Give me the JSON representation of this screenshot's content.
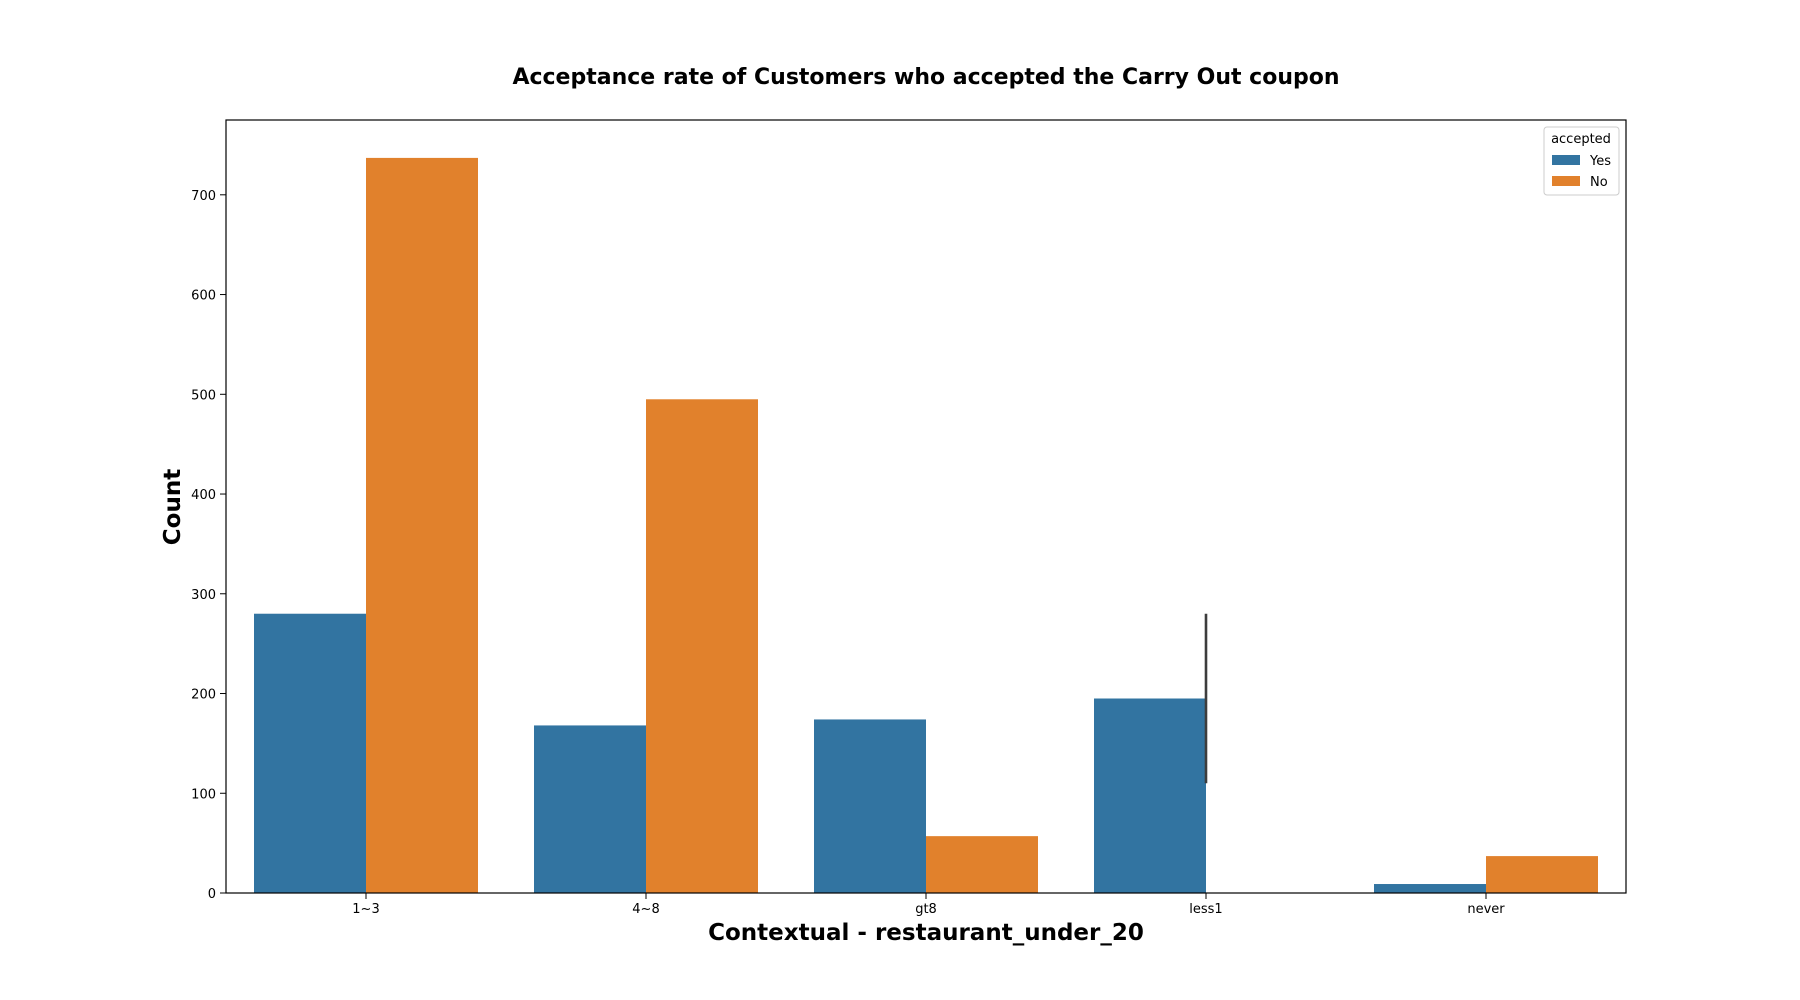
{
  "chart_data": {
    "type": "bar",
    "title": "Acceptance rate of Customers who accepted the Carry Out coupon",
    "xlabel": "Contextual - restaurant_under_20",
    "ylabel": "Count",
    "categories": [
      "1~3",
      "4~8",
      "gt8",
      "less1",
      "never"
    ],
    "series": [
      {
        "name": "Yes",
        "color": "#3274a1",
        "values": [
          280,
          168,
          174,
          195,
          9
        ]
      },
      {
        "name": "No",
        "color": "#e1812c",
        "values": [
          737,
          495,
          57,
          0,
          37
        ]
      }
    ],
    "error_bars": [
      {
        "category": "less1",
        "series": "Yes",
        "low": 110,
        "high": 280
      }
    ],
    "ylim": [
      0,
      775
    ],
    "yticks": [
      0,
      100,
      200,
      300,
      400,
      500,
      600,
      700
    ],
    "legend": {
      "title": "accepted",
      "placement": "top-right"
    },
    "grid": false
  }
}
